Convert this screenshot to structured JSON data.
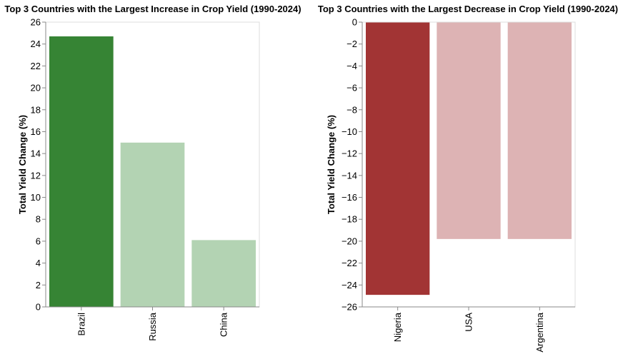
{
  "chart_data": [
    {
      "type": "bar",
      "title": "Top 3 Countries with the Largest Increase in Crop Yield (1990-2024)",
      "xlabel": "",
      "ylabel": "Total Yield Change (%)",
      "categories": [
        "Brazil",
        "Russia",
        "China"
      ],
      "values": [
        24.7,
        15.0,
        6.1
      ],
      "colors": [
        "#368434",
        "#b3d3b3",
        "#b3d3b3"
      ],
      "ylim": [
        0,
        26
      ],
      "yticks": [
        0,
        2,
        4,
        6,
        8,
        10,
        12,
        14,
        16,
        18,
        20,
        22,
        24,
        26
      ],
      "ytick_labels": [
        "0",
        "2",
        "4",
        "6",
        "8",
        "10",
        "12",
        "14",
        "16",
        "18",
        "20",
        "22",
        "24",
        "26"
      ],
      "grid": false,
      "legend": "none"
    },
    {
      "type": "bar",
      "title": "Top 3 Countries with the Largest Decrease in Crop Yield (1990-2024)",
      "xlabel": "",
      "ylabel": "Total Yield Change (%)",
      "categories": [
        "Nigeria",
        "USA",
        "Argentina"
      ],
      "values": [
        -24.9,
        -19.8,
        -19.8
      ],
      "colors": [
        "#a23434",
        "#ddb3b4",
        "#ddb3b4"
      ],
      "ylim": [
        -26,
        0
      ],
      "yticks": [
        0,
        -2,
        -4,
        -6,
        -8,
        -10,
        -12,
        -14,
        -16,
        -18,
        -20,
        -22,
        -24,
        -26
      ],
      "ytick_labels": [
        "0",
        "−2",
        "−4",
        "−6",
        "−8",
        "−10",
        "−12",
        "−14",
        "−16",
        "−18",
        "−20",
        "−22",
        "−24",
        "−26"
      ],
      "grid": false,
      "legend": "none"
    }
  ]
}
